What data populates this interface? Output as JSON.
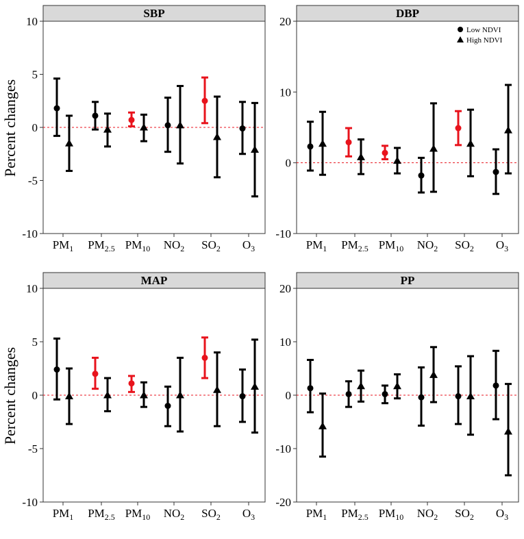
{
  "figure": {
    "ylabel": "Percent changes",
    "legend": [
      {
        "label": "Low NDVI",
        "marker": "circle"
      },
      {
        "label": "High NDVI",
        "marker": "triangle"
      }
    ]
  },
  "categories": [
    {
      "base": "PM",
      "sub": "1"
    },
    {
      "base": "PM",
      "sub": "2.5"
    },
    {
      "base": "PM",
      "sub": "10"
    },
    {
      "base": "NO",
      "sub": "2"
    },
    {
      "base": "SO",
      "sub": "2"
    },
    {
      "base": "O",
      "sub": "3"
    }
  ],
  "colors": {
    "default": "#000000",
    "significant": "#e8131c",
    "reference": "#e8131c",
    "header_fill": "#d9d9d9"
  },
  "chart_data": [
    {
      "type": "errorbar",
      "title": "SBP",
      "ylim": [
        -10,
        10
      ],
      "yticks": [
        -10,
        -5,
        0,
        5,
        10
      ],
      "series": [
        {
          "name": "Low NDVI",
          "marker": "circle",
          "points": [
            {
              "est": 1.8,
              "low": -0.8,
              "high": 4.6,
              "sig": false
            },
            {
              "est": 1.1,
              "low": -0.2,
              "high": 2.4,
              "sig": false
            },
            {
              "est": 0.7,
              "low": 0.1,
              "high": 1.4,
              "sig": true
            },
            {
              "est": 0.2,
              "low": -2.3,
              "high": 2.8,
              "sig": false
            },
            {
              "est": 2.5,
              "low": 0.4,
              "high": 4.7,
              "sig": true
            },
            {
              "est": -0.1,
              "low": -2.5,
              "high": 2.4,
              "sig": false
            }
          ]
        },
        {
          "name": "High NDVI",
          "marker": "triangle",
          "points": [
            {
              "est": -1.5,
              "low": -4.1,
              "high": 1.1,
              "sig": false
            },
            {
              "est": -0.2,
              "low": -1.8,
              "high": 1.3,
              "sig": false
            },
            {
              "est": 0.0,
              "low": -1.3,
              "high": 1.2,
              "sig": false
            },
            {
              "est": 0.2,
              "low": -3.4,
              "high": 3.9,
              "sig": false
            },
            {
              "est": -0.9,
              "low": -4.7,
              "high": 2.9,
              "sig": false
            },
            {
              "est": -2.1,
              "low": -6.5,
              "high": 2.3,
              "sig": false
            }
          ]
        }
      ]
    },
    {
      "type": "errorbar",
      "title": "DBP",
      "ylim": [
        -10,
        20
      ],
      "yticks": [
        -10,
        0,
        10,
        20
      ],
      "legend": "top-right",
      "series": [
        {
          "name": "Low NDVI",
          "marker": "circle",
          "points": [
            {
              "est": 2.3,
              "low": -1.1,
              "high": 5.8,
              "sig": false
            },
            {
              "est": 2.9,
              "low": 0.9,
              "high": 4.9,
              "sig": true
            },
            {
              "est": 1.4,
              "low": 0.5,
              "high": 2.4,
              "sig": true
            },
            {
              "est": -1.8,
              "low": -4.2,
              "high": 0.7,
              "sig": false
            },
            {
              "est": 4.9,
              "low": 2.5,
              "high": 7.3,
              "sig": true
            },
            {
              "est": -1.3,
              "low": -4.4,
              "high": 1.9,
              "sig": false
            }
          ]
        },
        {
          "name": "High NDVI",
          "marker": "triangle",
          "points": [
            {
              "est": 2.7,
              "low": -1.7,
              "high": 7.2,
              "sig": false
            },
            {
              "est": 0.8,
              "low": -1.6,
              "high": 3.3,
              "sig": false
            },
            {
              "est": 0.3,
              "low": -1.5,
              "high": 2.1,
              "sig": false
            },
            {
              "est": 2.0,
              "low": -4.1,
              "high": 8.4,
              "sig": false
            },
            {
              "est": 2.7,
              "low": -1.9,
              "high": 7.5,
              "sig": false
            },
            {
              "est": 4.6,
              "low": -1.5,
              "high": 11.0,
              "sig": false
            }
          ]
        }
      ]
    },
    {
      "type": "errorbar",
      "title": "MAP",
      "ylim": [
        -10,
        10
      ],
      "yticks": [
        -10,
        -5,
        0,
        5,
        10
      ],
      "series": [
        {
          "name": "Low NDVI",
          "marker": "circle",
          "points": [
            {
              "est": 2.4,
              "low": -0.4,
              "high": 5.3,
              "sig": false
            },
            {
              "est": 2.0,
              "low": 0.6,
              "high": 3.5,
              "sig": true
            },
            {
              "est": 1.1,
              "low": 0.3,
              "high": 1.8,
              "sig": true
            },
            {
              "est": -1.0,
              "low": -2.9,
              "high": 0.8,
              "sig": false
            },
            {
              "est": 3.5,
              "low": 1.6,
              "high": 5.4,
              "sig": true
            },
            {
              "est": -0.1,
              "low": -2.5,
              "high": 2.4,
              "sig": false
            }
          ]
        },
        {
          "name": "High NDVI",
          "marker": "triangle",
          "points": [
            {
              "est": -0.1,
              "low": -2.7,
              "high": 2.5,
              "sig": false
            },
            {
              "est": 0.0,
              "low": -1.5,
              "high": 1.6,
              "sig": false
            },
            {
              "est": 0.0,
              "low": -1.1,
              "high": 1.2,
              "sig": false
            },
            {
              "est": 0.0,
              "low": -3.4,
              "high": 3.5,
              "sig": false
            },
            {
              "est": 0.5,
              "low": -2.9,
              "high": 4.0,
              "sig": false
            },
            {
              "est": 0.8,
              "low": -3.5,
              "high": 5.2,
              "sig": false
            }
          ]
        }
      ]
    },
    {
      "type": "errorbar",
      "title": "PP",
      "ylim": [
        -20,
        20
      ],
      "yticks": [
        -20,
        -10,
        0,
        10,
        20
      ],
      "series": [
        {
          "name": "Low NDVI",
          "marker": "circle",
          "points": [
            {
              "est": 1.3,
              "low": -3.2,
              "high": 6.6,
              "sig": false
            },
            {
              "est": 0.2,
              "low": -2.2,
              "high": 2.6,
              "sig": false
            },
            {
              "est": 0.2,
              "low": -1.5,
              "high": 1.8,
              "sig": false
            },
            {
              "est": -0.4,
              "low": -5.7,
              "high": 5.2,
              "sig": false
            },
            {
              "est": -0.2,
              "low": -5.4,
              "high": 5.4,
              "sig": false
            },
            {
              "est": 1.8,
              "low": -4.5,
              "high": 8.3,
              "sig": false
            }
          ]
        },
        {
          "name": "High NDVI",
          "marker": "triangle",
          "points": [
            {
              "est": -5.8,
              "low": -11.5,
              "high": 0.3,
              "sig": false
            },
            {
              "est": 1.7,
              "low": -1.2,
              "high": 4.6,
              "sig": false
            },
            {
              "est": 1.7,
              "low": -0.6,
              "high": 3.9,
              "sig": false
            },
            {
              "est": 3.8,
              "low": -1.3,
              "high": 9.0,
              "sig": false
            },
            {
              "est": -0.2,
              "low": -7.4,
              "high": 7.3,
              "sig": false
            },
            {
              "est": -6.8,
              "low": -15.0,
              "high": 2.1,
              "sig": false
            }
          ]
        }
      ]
    }
  ]
}
